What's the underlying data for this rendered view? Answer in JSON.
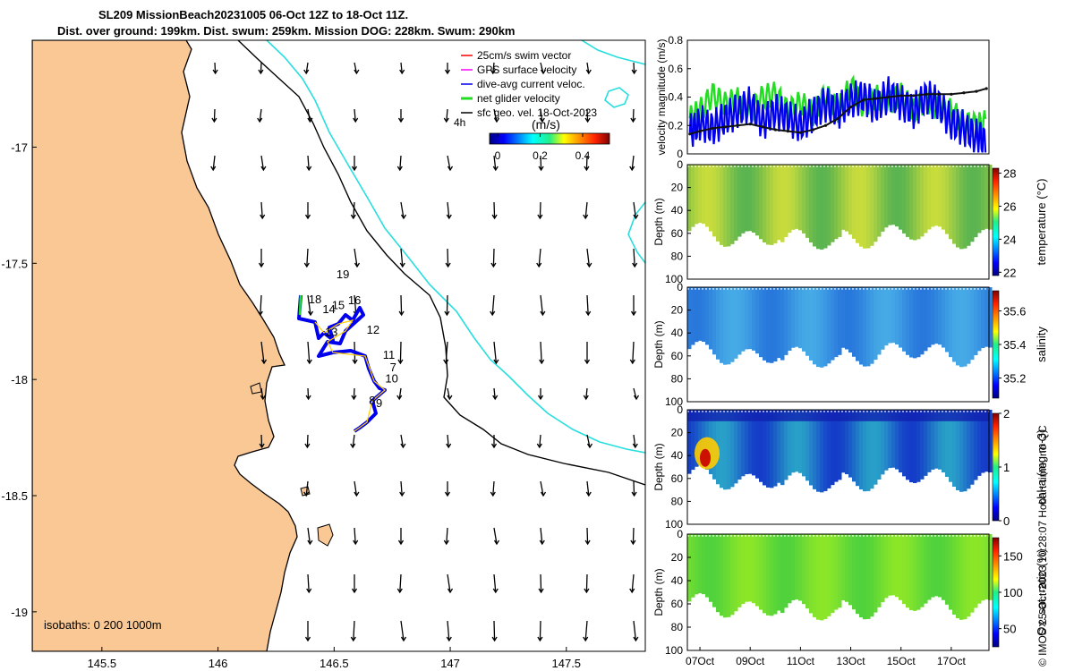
{
  "header": {
    "title_line1": "SL209 MissionBeach20231005 06-Oct 12Z to 18-Oct 11Z.",
    "title_line2": "Dist. over ground: 199km. Dist. swum: 259km. Mission DOG: 228km. Swum: 290km"
  },
  "credit": "© IMOS 25-Oct-2023 10:28:07 Hobart time. no QC",
  "colors": {
    "land": "#f9c895",
    "isobath_200": "#000000",
    "isobath_1000": "#27dede",
    "dive_avg": "#0000ee",
    "net_glider": "#22dd22",
    "sfc_geo": "#000000",
    "swim_vector": "#ff0000",
    "gps_velocity": "#ff00ff",
    "mean_line": "#111111"
  },
  "map": {
    "isobaths_label": "isobaths: 0   200  1000m",
    "legend": [
      {
        "label": "25cm/s swim vector",
        "color": "#ff0000"
      },
      {
        "label": "GPS surface velocity",
        "color": "#ff00ff"
      },
      {
        "label": "dive-avg current veloc.",
        "color": "#0000ee"
      },
      {
        "label": "net glider velocity",
        "color": "#22dd22"
      },
      {
        "label": "sfc geo. vel. 18-Oct-2023",
        "color": "#000000"
      }
    ],
    "time_label": "4h",
    "colorbar_title": "(m/s)",
    "colorbar_ticks": [
      "0",
      "0.2",
      "0.4"
    ],
    "lon_ticks": [
      "145.5",
      "146",
      "146.5",
      "147",
      "147.5"
    ],
    "lat_ticks": [
      "-17",
      "-17.5",
      "-18",
      "-18.5",
      "-19"
    ],
    "day_labels": [
      {
        "text": "19",
        "lon": 146.51,
        "lat": -17.565
      },
      {
        "text": "18",
        "lon": 146.39,
        "lat": -17.672
      },
      {
        "text": "14",
        "lon": 146.45,
        "lat": -17.715
      },
      {
        "text": "15",
        "lon": 146.49,
        "lat": -17.697
      },
      {
        "text": "16",
        "lon": 146.56,
        "lat": -17.675
      },
      {
        "text": "13",
        "lon": 146.46,
        "lat": -17.812
      },
      {
        "text": "12",
        "lon": 146.64,
        "lat": -17.803
      },
      {
        "text": "11",
        "lon": 146.71,
        "lat": -17.91
      },
      {
        "text": "7",
        "lon": 146.74,
        "lat": -17.965
      },
      {
        "text": "10",
        "lon": 146.72,
        "lat": -18.012
      },
      {
        "text": "8",
        "lon": 146.65,
        "lat": -18.108
      },
      {
        "text": "9",
        "lon": 146.68,
        "lat": -18.118
      }
    ]
  },
  "chart_data": [
    {
      "type": "line",
      "title": "",
      "xlabel": "",
      "ylabel": "velocity magnitude (m/s)",
      "ylim": [
        0,
        0.8
      ],
      "yticks": [
        "0",
        "0.2",
        "0.4",
        "0.6",
        "0.8"
      ],
      "xlim_days": [
        6.5,
        18.5
      ],
      "series": [
        {
          "name": "net glider velocity",
          "color": "#22dd22",
          "x": [
            6.6,
            7.0,
            7.5,
            8.0,
            8.5,
            9.0,
            9.5,
            10.0,
            10.5,
            11.0,
            11.5,
            12.0,
            12.5,
            13.0,
            13.5,
            14.0,
            14.5,
            15.0,
            15.5,
            16.0,
            16.5,
            17.0,
            17.5,
            18.0,
            18.4
          ],
          "y": [
            0.25,
            0.3,
            0.42,
            0.35,
            0.38,
            0.3,
            0.4,
            0.42,
            0.3,
            0.36,
            0.28,
            0.42,
            0.3,
            0.48,
            0.34,
            0.4,
            0.36,
            0.42,
            0.3,
            0.38,
            0.32,
            0.3,
            0.22,
            0.2,
            0.22
          ]
        },
        {
          "name": "dive-avg current veloc.",
          "color": "#0000ee",
          "x": [
            6.6,
            7.0,
            7.5,
            8.0,
            8.5,
            9.0,
            9.5,
            10.0,
            10.5,
            11.0,
            11.5,
            12.0,
            12.5,
            13.0,
            13.5,
            14.0,
            14.5,
            15.0,
            15.5,
            16.0,
            16.5,
            17.0,
            17.5,
            18.0,
            18.4
          ],
          "y": [
            0.15,
            0.22,
            0.18,
            0.25,
            0.3,
            0.35,
            0.22,
            0.3,
            0.26,
            0.2,
            0.28,
            0.35,
            0.3,
            0.38,
            0.4,
            0.33,
            0.42,
            0.36,
            0.3,
            0.4,
            0.35,
            0.22,
            0.18,
            0.12,
            0.08
          ]
        },
        {
          "name": "sfc geo. vel.",
          "color": "#111111",
          "x": [
            6.6,
            7.0,
            7.5,
            8.0,
            8.5,
            9.0,
            9.5,
            10.0,
            10.5,
            11.0,
            11.5,
            12.0,
            12.5,
            13.0,
            13.5,
            14.0,
            14.5,
            15.0,
            15.5,
            16.0,
            16.5,
            17.0,
            17.5,
            18.0,
            18.4
          ],
          "y": [
            0.14,
            0.16,
            0.18,
            0.19,
            0.2,
            0.21,
            0.19,
            0.17,
            0.16,
            0.15,
            0.17,
            0.2,
            0.25,
            0.33,
            0.38,
            0.39,
            0.4,
            0.41,
            0.41,
            0.42,
            0.42,
            0.42,
            0.43,
            0.44,
            0.46
          ]
        }
      ]
    },
    {
      "type": "heatmap",
      "ylabel": "Depth (m)",
      "colorbar_label": "temperature (°C)",
      "ylim": [
        100,
        0
      ],
      "yticks": [
        "0",
        "20",
        "40",
        "60",
        "80",
        "100"
      ],
      "cbar_range": [
        21.8,
        28.3
      ],
      "cbar_ticks": [
        "22",
        "24",
        "26",
        "28"
      ]
    },
    {
      "type": "heatmap",
      "ylabel": "Depth (m)",
      "colorbar_label": "salinity",
      "ylim": [
        100,
        0
      ],
      "yticks": [
        "0",
        "20",
        "40",
        "60",
        "80",
        "100"
      ],
      "cbar_range": [
        35.08,
        35.72
      ],
      "cbar_ticks": [
        "35.2",
        "35.4",
        "35.6"
      ]
    },
    {
      "type": "heatmap",
      "ylabel": "Depth (m)",
      "colorbar_label": "chl-a (mg m-3)",
      "ylim": [
        100,
        0
      ],
      "yticks": [
        "0",
        "20",
        "40",
        "60",
        "80",
        "100"
      ],
      "cbar_range": [
        0,
        2
      ],
      "cbar_ticks": [
        "0",
        "1",
        "2"
      ]
    },
    {
      "type": "heatmap",
      "ylabel": "Depth (m)",
      "colorbar_label": "Ox. sat. ratio (%)",
      "ylim": [
        100,
        0
      ],
      "yticks": [
        "0",
        "20",
        "40",
        "60",
        "80",
        "100"
      ],
      "cbar_range": [
        25,
        175
      ],
      "cbar_ticks": [
        "50",
        "100",
        "150"
      ],
      "xticks": [
        "07Oct",
        "09Oct",
        "11Oct",
        "13Oct",
        "15Oct",
        "17Oct"
      ]
    }
  ]
}
